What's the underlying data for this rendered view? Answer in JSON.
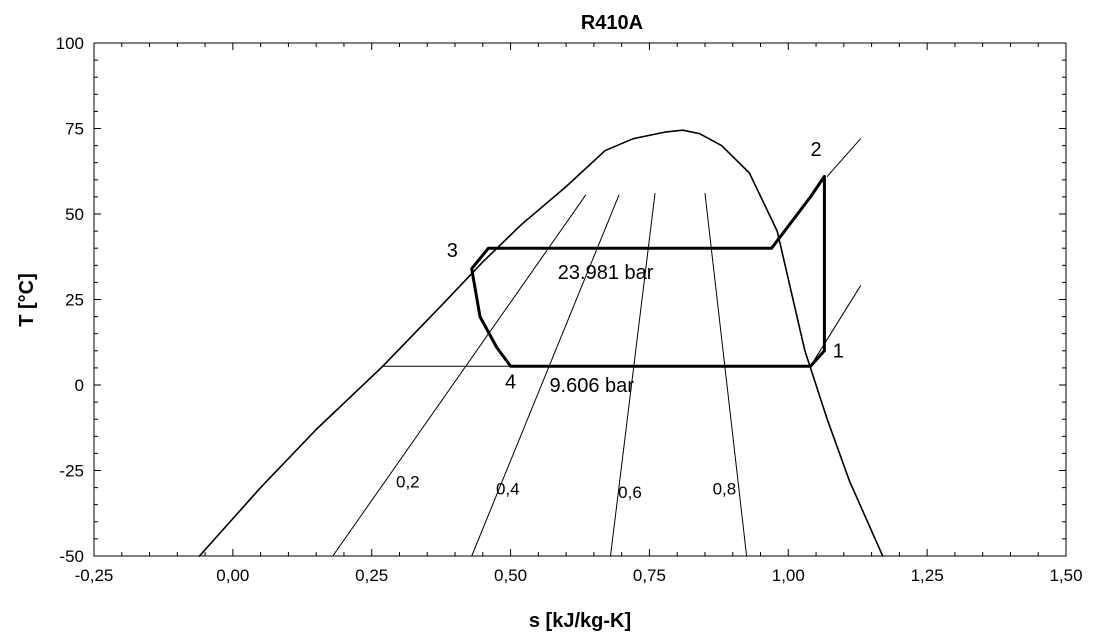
{
  "chart_data": {
    "type": "line",
    "title": "R410A",
    "xlabel": "s [kJ/kg-K]",
    "ylabel": "T [°C]",
    "xlim": [
      -0.25,
      1.5
    ],
    "ylim": [
      -50,
      100
    ],
    "x_ticks": [
      -0.25,
      0.0,
      0.25,
      0.5,
      0.75,
      1.0,
      1.25,
      1.5
    ],
    "x_tick_labels": [
      "-0,25",
      "0,00",
      "0,25",
      "0,50",
      "0,75",
      "1,00",
      "1,25",
      "1,50"
    ],
    "y_ticks": [
      -50,
      -25,
      0,
      25,
      50,
      75,
      100
    ],
    "y_tick_labels": [
      "-50",
      "-25",
      "0",
      "25",
      "50",
      "75",
      "100"
    ],
    "grid": false,
    "series": [
      {
        "role": "saturation-dome",
        "x": [
          -0.06,
          0.05,
          0.15,
          0.27,
          0.38,
          0.45,
          0.52,
          0.6,
          0.67,
          0.72,
          0.78,
          0.81,
          0.84,
          0.88,
          0.93,
          0.98,
          1.03,
          1.07,
          1.11,
          1.17
        ],
        "y": [
          -50,
          -30,
          -13,
          5.5,
          24,
          36,
          47,
          58,
          68.5,
          72,
          74,
          74.5,
          73.5,
          70,
          62,
          45,
          10,
          -10,
          -28,
          -50
        ]
      },
      {
        "role": "quality-0.2",
        "x": [
          0.18,
          0.635
        ],
        "y": [
          -50,
          55.5
        ]
      },
      {
        "role": "quality-0.4",
        "x": [
          0.43,
          0.695
        ],
        "y": [
          -50,
          55.5
        ]
      },
      {
        "role": "quality-0.6",
        "x": [
          0.68,
          0.76
        ],
        "y": [
          -50,
          56
        ]
      },
      {
        "role": "quality-0.8",
        "x": [
          0.925,
          0.85
        ],
        "y": [
          -50,
          56
        ]
      },
      {
        "role": "isobar-9.606-bar",
        "x": [
          0.27,
          1.04
        ],
        "y": [
          5.5,
          5.5
        ]
      },
      {
        "role": "superheat-isobar-9.606-bar",
        "x": [
          1.04,
          1.13
        ],
        "y": [
          5.5,
          29
        ]
      },
      {
        "role": "superheat-isobar-23.981-bar",
        "x": [
          1.07,
          1.13
        ],
        "y": [
          61,
          72
        ]
      },
      {
        "role": "refrigeration-cycle",
        "x": [
          1.04,
          1.065,
          1.065,
          1.04,
          0.97,
          0.46,
          0.43,
          0.445,
          0.475,
          0.5,
          1.04
        ],
        "y": [
          5.5,
          10,
          61,
          55,
          40,
          40,
          34,
          20,
          11,
          5.5,
          5.5
        ]
      }
    ],
    "annotations": [
      {
        "text": "R410A-state-1",
        "label": "1",
        "x": 1.08,
        "y": 8
      },
      {
        "text": "R410A-state-2",
        "label": "2",
        "x": 1.04,
        "y": 67
      },
      {
        "text": "R410A-state-3",
        "label": "3",
        "x": 0.385,
        "y": 37.5
      },
      {
        "text": "R410A-state-4",
        "label": "4",
        "x": 0.49,
        "y": -1
      },
      {
        "text": "pressure-high",
        "label": "23.981 bar",
        "x": 0.585,
        "y": 31
      },
      {
        "text": "pressure-low",
        "label": "9.606 bar",
        "x": 0.57,
        "y": -2
      }
    ],
    "quality_labels": [
      {
        "label": "0,2",
        "x": 0.315,
        "y": -30
      },
      {
        "label": "0,4",
        "x": 0.495,
        "y": -32
      },
      {
        "label": "0,6",
        "x": 0.715,
        "y": -33
      },
      {
        "label": "0,8",
        "x": 0.885,
        "y": -32
      }
    ]
  }
}
